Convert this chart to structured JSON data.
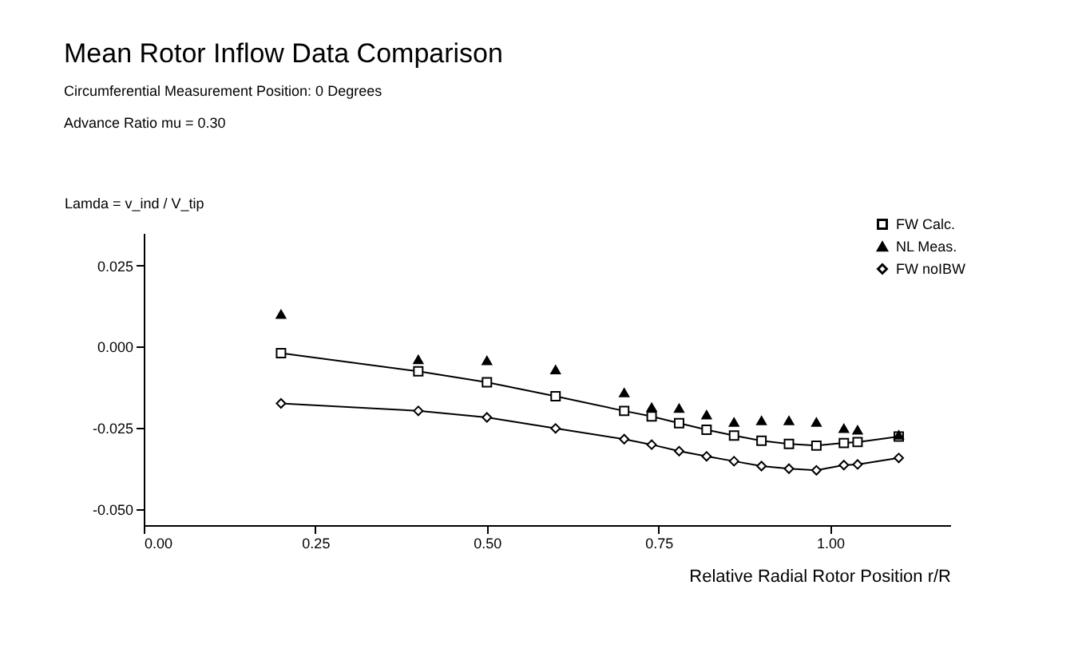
{
  "chart_data": {
    "type": "line",
    "title": "Mean Rotor Inflow Data Comparison",
    "subtitle": [
      "Circumferential Measurement Position: 0 Degrees",
      "Advance Ratio mu = 0.30"
    ],
    "xlabel": "Relative Radial Rotor Position r/R",
    "ylabel": "Lamda = v_ind / V_tip",
    "x": [
      0.2,
      0.4,
      0.5,
      0.6,
      0.7,
      0.74,
      0.78,
      0.82,
      0.86,
      0.9,
      0.94,
      0.98,
      1.02,
      1.04,
      1.1
    ],
    "series": [
      {
        "name": "FW Calc.",
        "marker": "square",
        "color": "#000000",
        "values": [
          -0.002,
          -0.0076,
          -0.011,
          -0.0153,
          -0.0198,
          -0.0215,
          -0.0236,
          -0.0256,
          -0.0274,
          -0.029,
          -0.03,
          -0.0305,
          -0.0297,
          -0.0294,
          -0.0277
        ]
      },
      {
        "name": "NL Meas.",
        "type": "scatter",
        "marker": "triangle",
        "color": "#000000",
        "values": [
          0.01,
          -0.004,
          -0.0043,
          -0.0071,
          -0.0142,
          -0.0187,
          -0.019,
          -0.021,
          -0.0233,
          -0.0228,
          -0.0228,
          -0.0233,
          -0.0252,
          -0.0257,
          -0.0272
        ]
      },
      {
        "name": "FW noIBW",
        "marker": "diamond",
        "color": "#000000",
        "values": [
          -0.0175,
          -0.0198,
          -0.0218,
          -0.0252,
          -0.0285,
          -0.0302,
          -0.0322,
          -0.0338,
          -0.0353,
          -0.0368,
          -0.0376,
          -0.0381,
          -0.0365,
          -0.0363,
          -0.0343
        ]
      }
    ],
    "xlim": [
      0,
      1.175
    ],
    "xticks": [
      {
        "value": 0,
        "label": "0.00"
      },
      0.25,
      {
        "value": 0.5,
        "label": "0.50"
      },
      0.75,
      {
        "value": 1,
        "label": "1.00"
      }
    ],
    "ylim": [
      -0.055,
      0.035
    ],
    "yticks": [
      {
        "value": -0.05,
        "label": "-0.050"
      },
      -0.025,
      {
        "value": 0,
        "label": "0.000"
      },
      0.025
    ],
    "grid": false,
    "legend": "top right"
  }
}
